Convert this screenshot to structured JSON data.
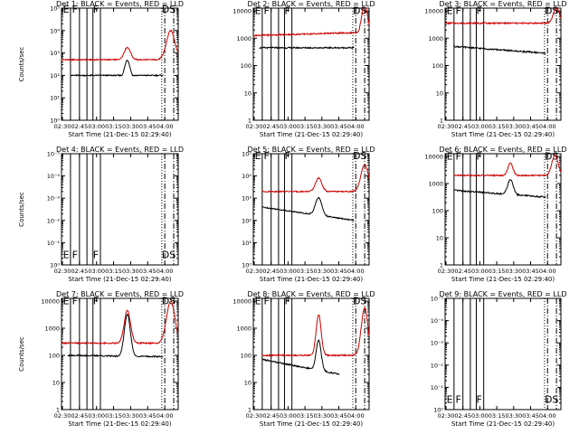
{
  "colors": {
    "events": "#000000",
    "lld": "#cc0000",
    "axes": "#000000"
  },
  "chart_data": [
    {
      "type": "line",
      "title": "Det 1: BLACK = Events, RED = LLD",
      "xlabel": "Start Time (21-Dec-15 02:29:40)",
      "ylabel": "Counts/sec",
      "xticks": [
        "02:30",
        "02:45",
        "03:00",
        "03:15",
        "03:30",
        "03:45",
        "04:00"
      ],
      "xlim": [
        0,
        39
      ],
      "log_ylim": [
        0,
        5
      ],
      "yticks": [
        {
          "v": 0,
          "label": "10⁰"
        },
        {
          "v": 1,
          "label": "10¹"
        },
        {
          "v": 2,
          "label": "10²"
        },
        {
          "v": 3,
          "label": "10³"
        },
        {
          "v": 4,
          "label": "10⁴"
        },
        {
          "v": 5,
          "label": "10⁵"
        }
      ],
      "events": {
        "start": 3,
        "end": 34,
        "base": 2.0,
        "end_val": 1.8,
        "flare": {
          "at": 22,
          "peak": 2.8,
          "w": 1.3
        },
        "post": {
          "at": 37.5,
          "peak": 2.3,
          "w": 2
        }
      },
      "lld": {
        "start": 0,
        "end": 39,
        "base": 2.7,
        "flare": {
          "at": 22,
          "peak": 3.25,
          "w": 1.5
        },
        "post": {
          "at": 36.5,
          "peak": 4.0,
          "w": 2
        }
      },
      "solid_lines": [
        3,
        6,
        8.5,
        10.5,
        13
      ],
      "dashed_lines": [
        34.5,
        37.5
      ],
      "dotted_lines": [
        33.5
      ],
      "flags": [
        {
          "t": "E",
          "at": 0.5
        },
        {
          "t": "F",
          "at": 3.5
        },
        {
          "t": "F",
          "at": 10.5
        },
        {
          "t": "DS",
          "at": 33.5
        }
      ],
      "flag_y": 5
    },
    {
      "type": "line",
      "title": "Det 2: BLACK = Events, RED = LLD",
      "xlabel": "Start Time (21-Dec-15 02:29:40)",
      "ylabel": "",
      "xticks": [
        "02:30",
        "02:45",
        "03:00",
        "03:15",
        "03:30",
        "03:45",
        "04:00"
      ],
      "xlim": [
        0,
        39
      ],
      "log_ylim": [
        0,
        4.1
      ],
      "yticks": [
        {
          "v": 0,
          "label": "1"
        },
        {
          "v": 1,
          "label": "10"
        },
        {
          "v": 2,
          "label": "100"
        },
        {
          "v": 3,
          "label": "1000"
        },
        {
          "v": 4,
          "label": "10000"
        }
      ],
      "events": {
        "start": 2,
        "end": 34,
        "base": 2.65,
        "end_val": 2.45,
        "flare": null,
        "post": {
          "at": 37.5,
          "peak": 4.1,
          "w": 1.5
        }
      },
      "lld": {
        "start": 0,
        "end": 39,
        "base": 3.1,
        "slope": 0.003,
        "flare": null,
        "post": {
          "at": 37.5,
          "peak": 4.2,
          "w": 1.5
        }
      },
      "solid_lines": [
        3,
        6,
        8.5,
        10.5,
        13
      ],
      "dashed_lines": [
        34.5,
        37.5
      ],
      "dotted_lines": [
        33.5
      ],
      "flags": [
        {
          "t": "E",
          "at": 0.5
        },
        {
          "t": "F",
          "at": 3.5
        },
        {
          "t": "F",
          "at": 10.5
        },
        {
          "t": "DS",
          "at": 33.5
        }
      ],
      "flag_y": 4.05
    },
    {
      "type": "line",
      "title": "Det 3: BLACK = Events, RED = LLD",
      "xlabel": "Start Time (21-Dec-15 02:29:40)",
      "ylabel": "",
      "xticks": [
        "02:30",
        "02:45",
        "03:00",
        "03:15",
        "03:30",
        "03:45",
        "04:00"
      ],
      "xlim": [
        0,
        39
      ],
      "log_ylim": [
        0,
        4.1
      ],
      "yticks": [
        {
          "v": 0,
          "label": "1"
        },
        {
          "v": 1,
          "label": "10"
        },
        {
          "v": 2,
          "label": "100"
        },
        {
          "v": 3,
          "label": "1000"
        },
        {
          "v": 4,
          "label": "10000"
        }
      ],
      "events": {
        "start": 3,
        "end": 34,
        "base": 2.7,
        "end_val": 2.45,
        "flare": null,
        "post": null
      },
      "lld": {
        "start": 0,
        "end": 39,
        "base": 3.55,
        "flare": null,
        "post": {
          "at": 37.5,
          "peak": 4.1,
          "w": 1.5
        }
      },
      "solid_lines": [
        3,
        6,
        8.5,
        10.5,
        13
      ],
      "dashed_lines": [
        34.5,
        37.5
      ],
      "dotted_lines": [
        33.5
      ],
      "flags": [
        {
          "t": "E",
          "at": 0.5
        },
        {
          "t": "F",
          "at": 3.5
        },
        {
          "t": "F",
          "at": 10.5
        },
        {
          "t": "DS",
          "at": 33.5
        }
      ],
      "flag_y": 4.05
    },
    {
      "type": "line",
      "title": "Det 4: BLACK = Events, RED = LLD",
      "xlabel": "Start Time (21-Dec-15 02:29:40)",
      "ylabel": "Counts/sec",
      "xticks": [
        "02:30",
        "02:45",
        "03:00",
        "03:15",
        "03:30",
        "03:45",
        "04:00"
      ],
      "xlim": [
        0,
        39
      ],
      "log_ylim": [
        0,
        5
      ],
      "yticks": [
        {
          "v": 0,
          "label": "10⁰"
        },
        {
          "v": 1,
          "label": "10⁻¹"
        },
        {
          "v": 2,
          "label": "10⁻²"
        },
        {
          "v": 3,
          "label": "10⁻³"
        },
        {
          "v": 4,
          "label": "10⁻⁴"
        },
        {
          "v": 5,
          "label": "10⁻⁵"
        }
      ],
      "events": null,
      "lld": null,
      "solid_lines": [
        3,
        6,
        8.5,
        10.5,
        13
      ],
      "dashed_lines": [
        34.5,
        37.5
      ],
      "dotted_lines": [
        33.5
      ],
      "flags": [
        {
          "t": "E",
          "at": 0.5
        },
        {
          "t": "F",
          "at": 3.5
        },
        {
          "t": "F",
          "at": 10.5
        },
        {
          "t": "DS",
          "at": 33.5
        }
      ],
      "flag_y": 0.5
    },
    {
      "type": "line",
      "title": "Det 5: BLACK = Events, RED = LLD",
      "xlabel": "Start Time (21-Dec-15 02:29:40)",
      "ylabel": "",
      "xticks": [
        "02:30",
        "02:45",
        "03:00",
        "03:15",
        "03:30",
        "03:45",
        "04:00"
      ],
      "xlim": [
        0,
        39
      ],
      "log_ylim": [
        0,
        5
      ],
      "yticks": [
        {
          "v": 0,
          "label": "10⁰"
        },
        {
          "v": 1,
          "label": "10¹"
        },
        {
          "v": 2,
          "label": "10²"
        },
        {
          "v": 3,
          "label": "10³"
        },
        {
          "v": 4,
          "label": "10⁴"
        },
        {
          "v": 5,
          "label": "10⁵"
        }
      ],
      "events": {
        "start": 3,
        "end": 34,
        "base": 2.6,
        "end_val": 2.0,
        "flare": {
          "at": 22,
          "peak": 3.4,
          "w": 1.5
        },
        "post": null
      },
      "lld": {
        "start": 3,
        "end": 39,
        "base": 3.3,
        "flare": {
          "at": 22,
          "peak": 3.9,
          "w": 1.5
        },
        "post": {
          "at": 37.5,
          "peak": 4.5,
          "w": 1.8
        }
      },
      "solid_lines": [
        3,
        6,
        8.5,
        10.5,
        13
      ],
      "dashed_lines": [
        34.5,
        37.5
      ],
      "dotted_lines": [
        33.5
      ],
      "flags": [
        {
          "t": "E",
          "at": 0.5
        },
        {
          "t": "F",
          "at": 3.5
        },
        {
          "t": "F",
          "at": 10.5
        },
        {
          "t": "DS",
          "at": 33.5
        }
      ],
      "flag_y": 4.95
    },
    {
      "type": "line",
      "title": "Det 6: BLACK = Events, RED = LLD",
      "xlabel": "Start Time (21-Dec-15 02:29:40)",
      "ylabel": "",
      "xticks": [
        "02:30",
        "02:45",
        "03:00",
        "03:15",
        "03:30",
        "03:45",
        "04:00"
      ],
      "xlim": [
        0,
        39
      ],
      "log_ylim": [
        0,
        4.1
      ],
      "yticks": [
        {
          "v": 0,
          "label": "1"
        },
        {
          "v": 1,
          "label": "10"
        },
        {
          "v": 2,
          "label": "100"
        },
        {
          "v": 3,
          "label": "1000"
        },
        {
          "v": 4,
          "label": "10000"
        }
      ],
      "events": {
        "start": 3,
        "end": 34,
        "base": 2.75,
        "end_val": 2.5,
        "flare": {
          "at": 22,
          "peak": 3.3,
          "w": 1.3
        },
        "post": null
      },
      "lld": {
        "start": 3,
        "end": 39,
        "base": 3.3,
        "flare": {
          "at": 22,
          "peak": 3.75,
          "w": 1.2
        },
        "post": {
          "at": 37,
          "peak": 4.05,
          "w": 1.5
        }
      },
      "solid_lines": [
        3,
        6,
        8.5,
        10.5,
        13
      ],
      "dashed_lines": [
        34.5,
        37.5
      ],
      "dotted_lines": [
        33.5
      ],
      "flags": [
        {
          "t": "E",
          "at": 0.5
        },
        {
          "t": "F",
          "at": 3.5
        },
        {
          "t": "F",
          "at": 10.5
        },
        {
          "t": "DS",
          "at": 33.5
        }
      ],
      "flag_y": 4.05
    },
    {
      "type": "line",
      "title": "Det 7: BLACK = Events, RED = LLD",
      "xlabel": "Start Time (21-Dec-15 02:29:40)",
      "ylabel": "Counts/sec",
      "xticks": [
        "02:30",
        "02:45",
        "03:00",
        "03:15",
        "03:30",
        "03:45",
        "04:00"
      ],
      "xlim": [
        0,
        39
      ],
      "log_ylim": [
        0,
        4.1
      ],
      "yticks": [
        {
          "v": 0,
          "label": "1"
        },
        {
          "v": 1,
          "label": "10"
        },
        {
          "v": 2,
          "label": "100"
        },
        {
          "v": 3,
          "label": "1000"
        },
        {
          "v": 4,
          "label": "10000"
        }
      ],
      "events": {
        "start": 2,
        "end": 34,
        "base": 2.0,
        "end_val": 1.95,
        "flare": {
          "at": 22,
          "peak": 3.55,
          "w": 1.4
        },
        "post": null
      },
      "lld": {
        "start": 0,
        "end": 39,
        "base": 2.45,
        "flare": {
          "at": 22,
          "peak": 3.65,
          "w": 1.5
        },
        "post": {
          "at": 36.5,
          "peak": 4.0,
          "w": 2
        }
      },
      "solid_lines": [
        3,
        6,
        8.5,
        10.5,
        13
      ],
      "dashed_lines": [
        34.5,
        37.5
      ],
      "dotted_lines": [
        33.5
      ],
      "flags": [
        {
          "t": "E",
          "at": 0.5
        },
        {
          "t": "F",
          "at": 3.5
        },
        {
          "t": "F",
          "at": 10.5
        },
        {
          "t": "DS",
          "at": 33.5
        }
      ],
      "flag_y": 4.05
    },
    {
      "type": "line",
      "title": "Det 8: BLACK = Events, RED = LLD",
      "xlabel": "Start Time (21-Dec-15 02:29:40)",
      "ylabel": "",
      "xticks": [
        "02:30",
        "02:45",
        "03:00",
        "03:15",
        "03:30",
        "03:45",
        "04:00"
      ],
      "xlim": [
        0,
        39
      ],
      "log_ylim": [
        0,
        4.1
      ],
      "yticks": [
        {
          "v": 0,
          "label": "1"
        },
        {
          "v": 1,
          "label": "10"
        },
        {
          "v": 2,
          "label": "100"
        },
        {
          "v": 3,
          "label": "1000"
        },
        {
          "v": 4,
          "label": "10000"
        }
      ],
      "events": {
        "start": 3,
        "end": 29,
        "base": 1.85,
        "end_val": 1.3,
        "flare": {
          "at": 22,
          "peak": 2.95,
          "w": 1.2
        },
        "post": null
      },
      "lld": {
        "start": 3,
        "end": 39,
        "base": 2.0,
        "flare": {
          "at": 22,
          "peak": 3.5,
          "w": 1.2
        },
        "post": {
          "at": 37.5,
          "peak": 3.75,
          "w": 1.6
        }
      },
      "solid_lines": [
        3,
        6,
        8.5,
        10.5,
        13
      ],
      "dashed_lines": [
        34.5,
        37.5
      ],
      "dotted_lines": [
        33.5
      ],
      "flags": [
        {
          "t": "E",
          "at": 0.5
        },
        {
          "t": "F",
          "at": 3.5
        },
        {
          "t": "F",
          "at": 10.5
        },
        {
          "t": "DS",
          "at": 33.5
        }
      ],
      "flag_y": 4.05
    },
    {
      "type": "line",
      "title": "Det 9: BLACK = Events, RED = LLD",
      "xlabel": "Start Time (21-Dec-15 02:29:40)",
      "ylabel": "",
      "xticks": [
        "02:30",
        "02:45",
        "03:00",
        "03:15",
        "03:30",
        "03:45",
        "04:00"
      ],
      "xlim": [
        0,
        39
      ],
      "log_ylim": [
        0,
        5
      ],
      "yticks": [
        {
          "v": 0,
          "label": "10⁰"
        },
        {
          "v": 1,
          "label": "10⁻¹"
        },
        {
          "v": 2,
          "label": "10⁻²"
        },
        {
          "v": 3,
          "label": "10⁻³"
        },
        {
          "v": 4,
          "label": "10⁻⁴"
        },
        {
          "v": 5,
          "label": "10⁻⁵"
        }
      ],
      "events": null,
      "lld": null,
      "solid_lines": [
        3,
        6,
        8.5,
        10.5,
        13
      ],
      "dashed_lines": [
        34.5,
        37.5
      ],
      "dotted_lines": [
        33.5
      ],
      "flags": [
        {
          "t": "E",
          "at": 0.5
        },
        {
          "t": "F",
          "at": 3.5
        },
        {
          "t": "F",
          "at": 10.5
        },
        {
          "t": "DS",
          "at": 33.5
        }
      ],
      "flag_y": 0.5
    }
  ]
}
